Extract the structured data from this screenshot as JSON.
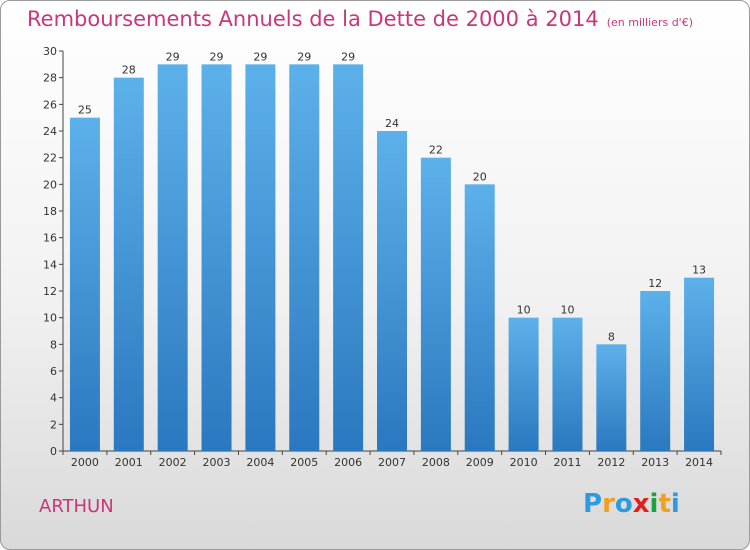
{
  "title": "Remboursements Annuels de la Dette de 2000 à 2014",
  "unit_note": "(en milliers d'€)",
  "commune": "ARTHUN",
  "logo": {
    "letters": [
      "P",
      "r",
      "o",
      "x",
      "i",
      "t",
      "i"
    ],
    "colors": [
      "#2e9be0",
      "#f0a020",
      "#2e9be0",
      "#e02020",
      "#1ea03c",
      "#f0a020",
      "#2e9be0"
    ]
  },
  "colors": {
    "title": "#c8377a",
    "bar_light": "#5aaee8",
    "bar_dark": "#2f7fc4",
    "axis": "#333333"
  },
  "chart_data": {
    "type": "bar",
    "title": "Remboursements Annuels de la Dette de 2000 à 2014",
    "subtitle": "(en milliers d'€)",
    "categories": [
      "2000",
      "2001",
      "2002",
      "2003",
      "2004",
      "2005",
      "2006",
      "2007",
      "2008",
      "2009",
      "2010",
      "2011",
      "2012",
      "2013",
      "2014"
    ],
    "values": [
      25,
      28,
      29,
      29,
      29,
      29,
      29,
      24,
      22,
      20,
      10,
      10,
      8,
      12,
      13
    ],
    "ylim": [
      0,
      30
    ],
    "yticks": [
      0,
      2,
      4,
      6,
      8,
      10,
      12,
      14,
      16,
      18,
      20,
      22,
      24,
      26,
      28,
      30
    ],
    "grid": false,
    "data_labels": true
  }
}
